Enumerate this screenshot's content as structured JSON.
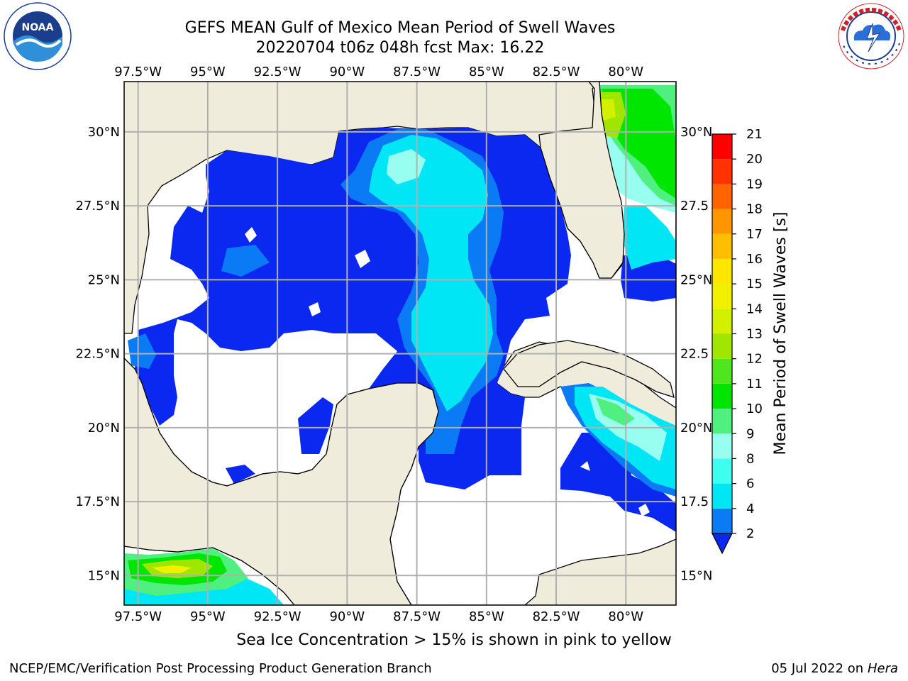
{
  "header": {
    "title_line1": "GEFS MEAN Gulf of Mexico Mean Period of Swell Waves",
    "title_line2": "20220704 t06z 048h fcst   Max: 16.22"
  },
  "logos": {
    "left_icon": "noaa-logo",
    "left_text": "NOAA",
    "left_ring_text": "NATIONAL OCEANIC AND ATMOSPHERIC ADMINISTRATION · U.S. DEPARTMENT OF COMMERCE",
    "right_icon": "nws-logo",
    "right_ring_text": "NATIONAL WEATHER SERVICE"
  },
  "map": {
    "lon_labels": [
      "97.5°W",
      "95°W",
      "92.5°W",
      "90°W",
      "87.5°W",
      "85°W",
      "82.5°W",
      "80°W"
    ],
    "lon_values": [
      -97.5,
      -95,
      -92.5,
      -90,
      -87.5,
      -85,
      -82.5,
      -80
    ],
    "lat_labels_left": [
      "30°N",
      "27.5°N",
      "25°N",
      "22.5°N",
      "20°N",
      "17.5°N",
      "15°N"
    ],
    "lat_labels_right": [
      "30°N",
      "27.5",
      "25°N",
      "22.5",
      "20°N",
      "17.5",
      "15°N"
    ],
    "lat_values": [
      30,
      27.5,
      25,
      22.5,
      20,
      17.5,
      15
    ],
    "extent": {
      "lon_min": -98,
      "lon_max": -78.2,
      "lat_min": 14,
      "lat_max": 31.7
    },
    "colors": {
      "land": "#efecdc",
      "ocean": "#ffffff",
      "grid": "#b0b0b0",
      "coast": "#000000"
    }
  },
  "colorbar": {
    "label": "Mean Period of Swell Waves [s]",
    "ticks": [
      "2",
      "4",
      "6",
      "8",
      "9",
      "10",
      "11",
      "12",
      "13",
      "14",
      "15",
      "16",
      "17",
      "18",
      "19",
      "20",
      "21"
    ],
    "colors": [
      "#0a28f0",
      "#0a7af5",
      "#00e6f5",
      "#3cfff0",
      "#98fff0",
      "#50f080",
      "#00e600",
      "#50e61e",
      "#a0e600",
      "#d2f000",
      "#f0f000",
      "#ffe600",
      "#ffbe00",
      "#ff9600",
      "#ff6400",
      "#ff3200",
      "#ff0000"
    ]
  },
  "footer": {
    "note": "Sea Ice Concentration > 15% is shown in pink to yellow",
    "left": "NCEP/EMC/Verification Post Processing Product Generation Branch",
    "date": "05 Jul 2022 on ",
    "host": "Hera"
  }
}
